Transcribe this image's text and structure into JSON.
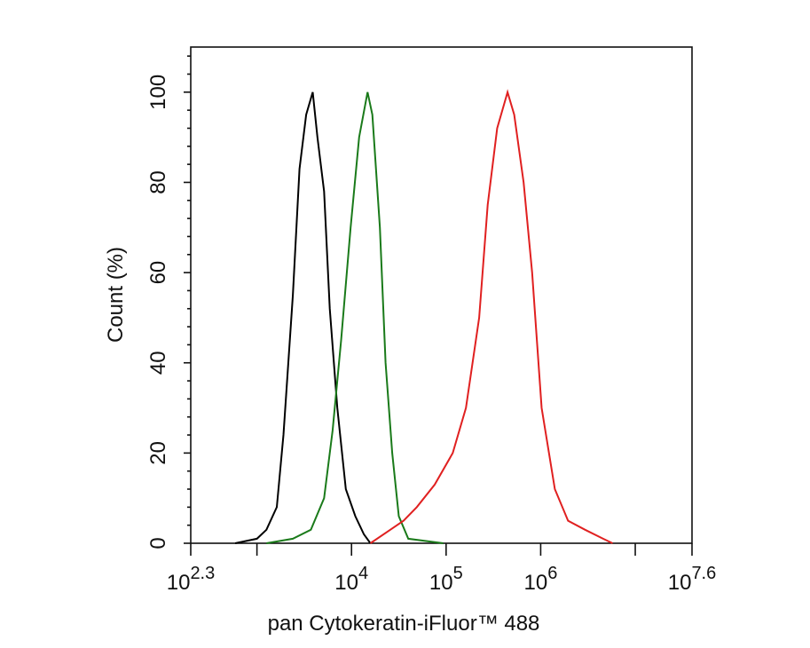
{
  "chart_data": {
    "type": "line",
    "x_label": "pan Cytokeratin-iFluor™ 488",
    "y_label": "Count  (%)",
    "xscale": "log",
    "xlim": [
      199.526,
      39810717
    ],
    "ylim": [
      0,
      110
    ],
    "xticks": [
      {
        "value": 199.526,
        "label": "10",
        "exponent": "2.3"
      },
      {
        "value": 10000,
        "label": "10",
        "exponent": "4"
      },
      {
        "value": 100000,
        "label": "10",
        "exponent": "5"
      },
      {
        "value": 1000000,
        "label": "10",
        "exponent": "6"
      },
      {
        "value": 39810717,
        "label": "10",
        "exponent": "7.6"
      }
    ],
    "xticks_unlabeled": [
      1000,
      10000000
    ],
    "yticks": [
      0,
      20,
      40,
      60,
      80,
      100
    ],
    "series": [
      {
        "color": "#000000",
        "x": [
          589,
          1000,
          1259,
          1622,
          1905,
          2399,
          2818,
          3311,
          3890,
          4365,
          5129,
          5888,
          7079,
          8710,
          10965,
          13490,
          15849
        ],
        "values": [
          0,
          1,
          3,
          8,
          24,
          55,
          83,
          95,
          100,
          90,
          78,
          52,
          30,
          12,
          6,
          2,
          0
        ]
      },
      {
        "color": "#1a7a1a",
        "x": [
          1259,
          2399,
          3715,
          5129,
          6310,
          7762,
          9772,
          12023,
          14791,
          16596,
          19953,
          22909,
          26915,
          31623,
          39811,
          93325
        ],
        "values": [
          0,
          1,
          3,
          10,
          25,
          45,
          70,
          90,
          100,
          95,
          70,
          40,
          20,
          6,
          1,
          0
        ]
      },
      {
        "color": "#e02020",
        "x": [
          15849,
          25704,
          35481,
          48978,
          75858,
          117490,
          162181,
          223872,
          275423,
          346737,
          446684,
          524807,
          660693,
          812831,
          1023293,
          1412538,
          1949845,
          2951209,
          4570882,
          5754399
        ],
        "values": [
          0,
          3,
          5,
          8,
          13,
          20,
          30,
          50,
          75,
          92,
          100,
          95,
          80,
          60,
          30,
          12,
          5,
          3,
          1,
          0
        ]
      }
    ]
  }
}
